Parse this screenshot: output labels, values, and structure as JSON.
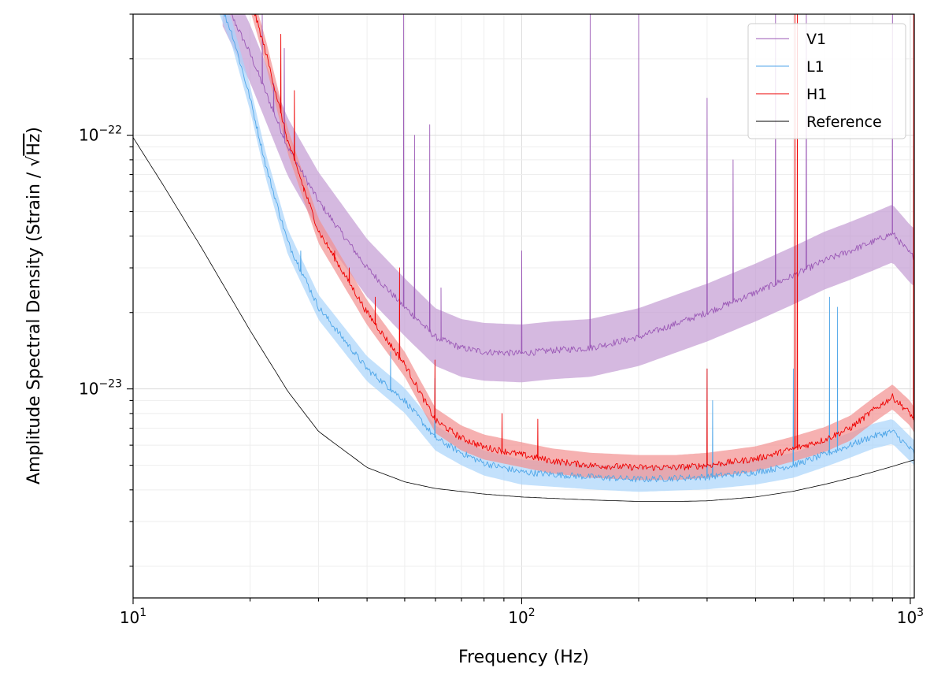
{
  "chart_data": {
    "type": "line",
    "title": "",
    "xlabel": "Frequency (Hz)",
    "ylabel_prefix": "Amplitude Spectral Density (Strain / ",
    "ylabel_radicand": "Hz",
    "ylabel_suffix": ")",
    "xscale": "log",
    "yscale": "log",
    "xlim": [
      10,
      1024
    ],
    "ylim": [
      1.5e-24,
      3e-22
    ],
    "grid": "on (major and minor, light)",
    "legend_position": "top-right",
    "x_ticks": [
      {
        "value": 10,
        "base": "10",
        "exp": "1"
      },
      {
        "value": 100,
        "base": "10",
        "exp": "2"
      },
      {
        "value": 1000,
        "base": "10",
        "exp": "3"
      }
    ],
    "y_ticks": [
      {
        "value": 1e-23,
        "base": "10",
        "exp": "−23"
      },
      {
        "value": 1e-22,
        "base": "10",
        "exp": "−22"
      }
    ],
    "series": [
      {
        "name": "V1",
        "color": "#9b59b6",
        "band_color": "#c39bd3",
        "x": [
          17,
          20,
          25,
          30,
          40,
          50,
          60,
          70,
          80,
          100,
          120,
          150,
          200,
          300,
          400,
          500,
          600,
          700,
          800,
          900,
          1000,
          1024
        ],
        "y": [
          3.5e-22,
          2.1e-22,
          9e-23,
          5.5e-23,
          3e-23,
          2.1e-23,
          1.6e-23,
          1.45e-23,
          1.4e-23,
          1.38e-23,
          1.42e-23,
          1.45e-23,
          1.6e-23,
          2e-23,
          2.4e-23,
          2.8e-23,
          3.2e-23,
          3.5e-23,
          3.8e-23,
          4.1e-23,
          3.4e-23,
          3.3e-23
        ],
        "band_ratio": 1.3,
        "lines": [
          {
            "f": 21.5,
            "a": 3e-22
          },
          {
            "f": 23,
            "a": 1.6e-22
          },
          {
            "f": 24.5,
            "a": 2.2e-22
          },
          {
            "f": 49.7,
            "a": 3e-22
          },
          {
            "f": 53,
            "a": 1e-22
          },
          {
            "f": 58,
            "a": 1.1e-22
          },
          {
            "f": 62,
            "a": 2.5e-23
          },
          {
            "f": 100,
            "a": 3.5e-23
          },
          {
            "f": 150,
            "a": 3e-22
          },
          {
            "f": 200,
            "a": 3e-22
          },
          {
            "f": 300,
            "a": 1.4e-22
          },
          {
            "f": 350,
            "a": 8e-23
          },
          {
            "f": 450,
            "a": 3e-22
          },
          {
            "f": 540,
            "a": 3e-22
          },
          {
            "f": 900,
            "a": 3e-22
          }
        ]
      },
      {
        "name": "L1",
        "color": "#4fa6e8",
        "band_color": "#a9d4fb",
        "x": [
          16.5,
          18,
          20,
          22,
          25,
          30,
          40,
          50,
          60,
          70,
          80,
          100,
          150,
          200,
          300,
          400,
          500,
          600,
          700,
          800,
          900,
          1000,
          1024
        ],
        "y": [
          3.5e-22,
          2.5e-22,
          1.4e-22,
          7.5e-23,
          3.8e-23,
          2.1e-23,
          1.2e-23,
          9e-24,
          6.4e-24,
          5.6e-24,
          5.1e-24,
          4.7e-24,
          4.5e-24,
          4.4e-24,
          4.5e-24,
          4.7e-24,
          5e-24,
          5.5e-24,
          6e-24,
          6.5e-24,
          6.8e-24,
          5.8e-24,
          5.6e-24
        ],
        "band_ratio": 1.12,
        "lines": [
          {
            "f": 27,
            "a": 3.5e-23
          },
          {
            "f": 46,
            "a": 1.4e-23
          },
          {
            "f": 59.8,
            "a": 1.1e-23
          },
          {
            "f": 300,
            "a": 1.2e-23
          },
          {
            "f": 310,
            "a": 9e-24
          },
          {
            "f": 500,
            "a": 1.2e-23
          },
          {
            "f": 620,
            "a": 2.3e-23
          },
          {
            "f": 650,
            "a": 2.1e-23
          }
        ]
      },
      {
        "name": "H1",
        "color": "#ee0000",
        "band_color": "#f29090",
        "x": [
          20,
          22,
          25,
          30,
          40,
          50,
          60,
          70,
          80,
          100,
          120,
          150,
          200,
          250,
          300,
          400,
          500,
          600,
          700,
          800,
          900,
          1000,
          1024
        ],
        "y": [
          3.5e-22,
          2.1e-22,
          9.5e-23,
          4.2e-23,
          2e-23,
          1.25e-23,
          7.5e-24,
          6.4e-24,
          5.9e-24,
          5.5e-24,
          5.2e-24,
          5e-24,
          4.9e-24,
          4.9e-24,
          5e-24,
          5.3e-24,
          5.8e-24,
          6.3e-24,
          7e-24,
          8.2e-24,
          9.3e-24,
          8e-24,
          7.5e-24
        ],
        "band_ratio": 1.12,
        "lines": [
          {
            "f": 24,
            "a": 2.5e-22
          },
          {
            "f": 26,
            "a": 1.5e-22
          },
          {
            "f": 27.5,
            "a": 6e-23
          },
          {
            "f": 33,
            "a": 3.5e-23
          },
          {
            "f": 36,
            "a": 3e-23
          },
          {
            "f": 42,
            "a": 2.3e-23
          },
          {
            "f": 48.5,
            "a": 3e-23
          },
          {
            "f": 59.8,
            "a": 1.3e-23
          },
          {
            "f": 89,
            "a": 8e-24
          },
          {
            "f": 110,
            "a": 7.6e-24
          },
          {
            "f": 300,
            "a": 1.2e-23
          },
          {
            "f": 505,
            "a": 3e-22
          },
          {
            "f": 512,
            "a": 3e-22
          },
          {
            "f": 1020,
            "a": 3e-22
          }
        ]
      },
      {
        "name": "Reference",
        "color": "#000000",
        "x": [
          10,
          12,
          15,
          20,
          25,
          30,
          40,
          50,
          60,
          80,
          100,
          150,
          200,
          250,
          300,
          400,
          500,
          600,
          700,
          800,
          900,
          1000,
          1024
        ],
        "y": [
          9.8e-23,
          6.3e-23,
          3.6e-23,
          1.7e-23,
          9.8e-24,
          6.8e-24,
          4.9e-24,
          4.3e-24,
          4.05e-24,
          3.85e-24,
          3.75e-24,
          3.65e-24,
          3.6e-24,
          3.6e-24,
          3.62e-24,
          3.75e-24,
          3.95e-24,
          4.2e-24,
          4.45e-24,
          4.7e-24,
          4.95e-24,
          5.2e-24,
          5.25e-24
        ]
      }
    ]
  }
}
